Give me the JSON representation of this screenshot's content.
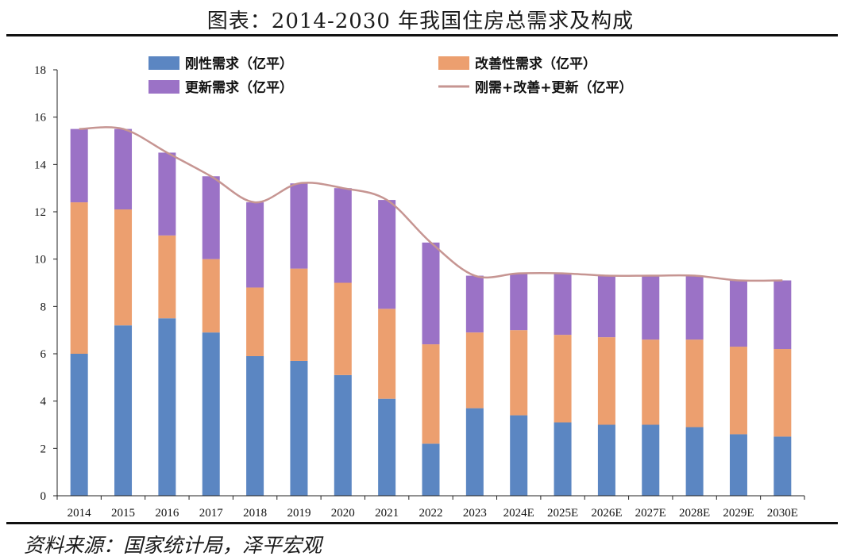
{
  "page": {
    "title": "图表：2014-2030 年我国住房总需求及构成",
    "source": "资料来源：国家统计局，泽平宏观"
  },
  "chart_data": {
    "type": "bar",
    "stacked": true,
    "categories": [
      "2014",
      "2015",
      "2016",
      "2017",
      "2018",
      "2019",
      "2020",
      "2021",
      "2022",
      "2023",
      "2024E",
      "2025E",
      "2026E",
      "2027E",
      "2028E",
      "2029E",
      "2030E"
    ],
    "series": [
      {
        "name": "刚性需求（亿平）",
        "color": "#5b86c2",
        "values": [
          6.0,
          7.2,
          7.5,
          6.9,
          5.9,
          5.7,
          5.1,
          4.1,
          2.2,
          3.7,
          3.4,
          3.1,
          3.0,
          3.0,
          2.9,
          2.6,
          2.5
        ]
      },
      {
        "name": "改善性需求（亿平）",
        "color": "#ec9f6f",
        "values": [
          6.4,
          4.9,
          3.5,
          3.1,
          2.9,
          3.9,
          3.9,
          3.8,
          4.2,
          3.2,
          3.6,
          3.7,
          3.7,
          3.6,
          3.7,
          3.7,
          3.7
        ]
      },
      {
        "name": "更新需求（亿平）",
        "color": "#9b72c6",
        "values": [
          3.1,
          3.4,
          3.5,
          3.5,
          3.6,
          3.6,
          4.0,
          4.6,
          4.3,
          2.4,
          2.4,
          2.6,
          2.6,
          2.7,
          2.7,
          2.8,
          2.9
        ]
      },
      {
        "name": "刚需+改善+更新（亿平）",
        "type": "line",
        "color": "#c69592",
        "values": [
          15.5,
          15.5,
          14.5,
          13.5,
          12.4,
          13.2,
          13.0,
          12.5,
          10.7,
          9.3,
          9.4,
          9.4,
          9.3,
          9.3,
          9.3,
          9.1,
          9.1
        ]
      }
    ],
    "ylim": [
      0,
      18
    ],
    "yticks": [
      "0",
      "2",
      "4",
      "6",
      "8",
      "10",
      "12",
      "14",
      "16",
      "18"
    ],
    "grid": false,
    "legend": "top"
  }
}
